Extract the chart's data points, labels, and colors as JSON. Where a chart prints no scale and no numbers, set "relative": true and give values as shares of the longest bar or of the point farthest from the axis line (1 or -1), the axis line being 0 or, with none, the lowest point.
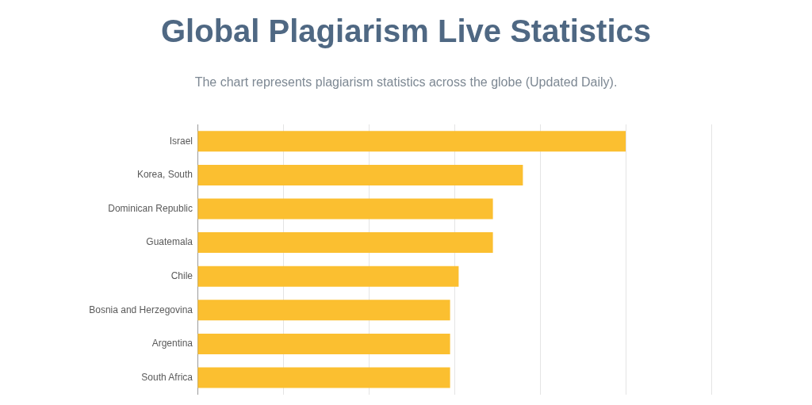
{
  "chart_data": {
    "type": "bar",
    "orientation": "horizontal",
    "title": "Global Plagiarism Live Statistics",
    "subtitle": "The chart represents plagiarism statistics across the globe (Updated Daily).",
    "categories": [
      "Israel",
      "Korea, South",
      "Dominican Republic",
      "Guatemala",
      "Chile",
      "Bosnia and Herzegovina",
      "Argentina",
      "South Africa"
    ],
    "values": [
      1,
      0.76,
      0.69,
      0.69,
      0.61,
      0.59,
      0.59,
      0.59
    ],
    "color": "#fbbf30",
    "relative": true,
    "grid": "x"
  }
}
